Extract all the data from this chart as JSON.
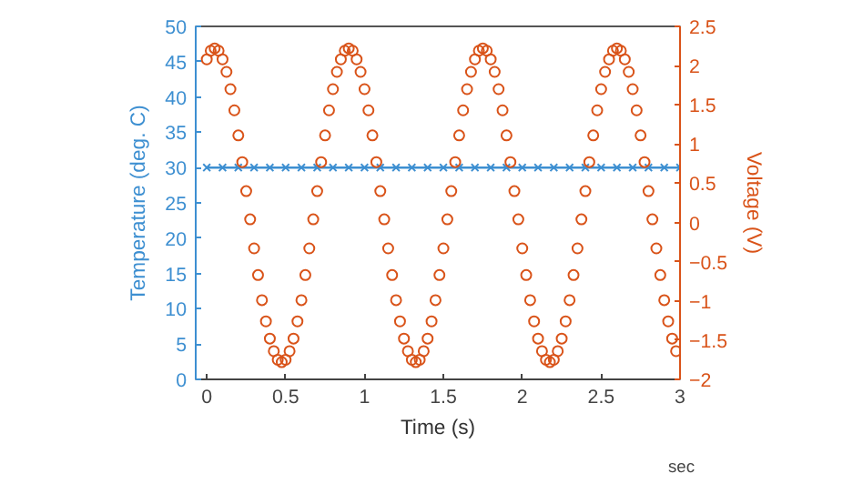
{
  "chart_data": {
    "type": "line",
    "xlabel": "Time (s)",
    "ylabel": "Temperature (deg. C)",
    "y2label": "Voltage (V)",
    "xlim": [
      -0.07,
      3
    ],
    "xticks": [
      0,
      0.5,
      1,
      1.5,
      2,
      2.5,
      3
    ],
    "ylim": [
      0,
      50
    ],
    "yticks": [
      0,
      5,
      10,
      15,
      20,
      25,
      30,
      35,
      40,
      45,
      50
    ],
    "y2lim": [
      -2,
      2.5
    ],
    "y2ticks": [
      -2,
      -1.5,
      -1,
      -0.5,
      0,
      0.5,
      1,
      1.5,
      2,
      2.5
    ],
    "grid": false,
    "annotations": [
      "sec"
    ],
    "series": [
      {
        "marker": "cross",
        "color": "#3d8fd1",
        "x": [
          0,
          0.1,
          0.2,
          0.3,
          0.4,
          0.5,
          0.6,
          0.7,
          0.8,
          0.9,
          1.0,
          1.1,
          1.2,
          1.3,
          1.4,
          1.5,
          1.6,
          1.7,
          1.8,
          1.9,
          2.0,
          2.1,
          2.2,
          2.3,
          2.4,
          2.5,
          2.6,
          2.7,
          2.8,
          2.9,
          3.0
        ],
        "values": [
          30,
          30,
          30,
          30,
          30,
          30,
          30,
          30,
          30,
          30,
          30,
          30,
          30,
          30,
          30,
          30,
          30,
          30,
          30,
          30,
          30,
          30,
          30,
          30,
          30,
          30,
          30,
          30,
          30,
          30,
          30
        ]
      },
      {
        "type": "scatter",
        "marker": "circle",
        "axis": "y2",
        "color": "#d95319",
        "x": [
          0,
          0.025,
          0.05,
          0.075,
          0.1,
          0.125,
          0.15,
          0.175,
          0.2,
          0.225,
          0.25,
          0.275,
          0.3,
          0.325,
          0.35,
          0.375,
          0.4,
          0.425,
          0.45,
          0.475,
          0.5,
          0.525,
          0.55,
          0.575,
          0.6,
          0.625,
          0.65,
          0.675,
          0.7,
          0.725,
          0.75,
          0.775,
          0.8,
          0.825,
          0.85,
          0.875,
          0.9,
          0.925,
          0.95,
          0.975,
          1.0,
          1.025,
          1.05,
          1.075,
          1.1,
          1.125,
          1.15,
          1.175,
          1.2,
          1.225,
          1.25,
          1.275,
          1.3,
          1.325,
          1.35,
          1.375,
          1.4,
          1.425,
          1.45,
          1.475,
          1.5,
          1.525,
          1.55,
          1.575,
          1.6,
          1.625,
          1.65,
          1.675,
          1.7,
          1.725,
          1.75,
          1.775,
          1.8,
          1.825,
          1.85,
          1.875,
          1.9,
          1.925,
          1.95,
          1.975,
          2.0,
          2.025,
          2.05,
          2.075,
          2.1,
          2.125,
          2.15,
          2.175,
          2.2,
          2.225,
          2.25,
          2.275,
          2.3,
          2.325,
          2.35,
          2.375,
          2.4,
          2.425,
          2.45,
          2.475,
          2.5,
          2.525,
          2.55,
          2.575,
          2.6,
          2.625,
          2.65,
          2.675,
          2.7,
          2.725,
          2.75,
          2.775,
          2.8,
          2.825,
          2.85,
          2.875,
          2.9,
          2.925,
          2.95,
          2.975
        ],
        "values": [
          2.08,
          2.19,
          2.22,
          2.19,
          2.08,
          1.92,
          1.7,
          1.43,
          1.11,
          0.77,
          0.4,
          0.04,
          -0.33,
          -0.67,
          -0.99,
          -1.26,
          -1.48,
          -1.64,
          -1.75,
          -1.78,
          -1.75,
          -1.64,
          -1.48,
          -1.26,
          -0.99,
          -0.67,
          -0.33,
          0.04,
          0.4,
          0.77,
          1.11,
          1.43,
          1.7,
          1.92,
          2.08,
          2.19,
          2.22,
          2.19,
          2.08,
          1.92,
          1.7,
          1.43,
          1.11,
          0.77,
          0.4,
          0.04,
          -0.33,
          -0.67,
          -0.99,
          -1.26,
          -1.48,
          -1.64,
          -1.75,
          -1.78,
          -1.75,
          -1.64,
          -1.48,
          -1.26,
          -0.99,
          -0.67,
          -0.33,
          0.04,
          0.4,
          0.77,
          1.11,
          1.43,
          1.7,
          1.92,
          2.08,
          2.19,
          2.22,
          2.19,
          2.08,
          1.92,
          1.7,
          1.43,
          1.11,
          0.77,
          0.4,
          0.04,
          -0.33,
          -0.67,
          -0.99,
          -1.26,
          -1.48,
          -1.64,
          -1.75,
          -1.78,
          -1.75,
          -1.64,
          -1.48,
          -1.26,
          -0.99,
          -0.67,
          -0.33,
          0.04,
          0.4,
          0.77,
          1.11,
          1.43,
          1.7,
          1.92,
          2.08,
          2.19,
          2.22,
          2.19,
          2.08,
          1.92,
          1.7,
          1.43,
          1.11,
          0.77,
          0.4,
          0.04,
          -0.33,
          -0.67,
          -0.99,
          -1.26,
          -1.48,
          -1.64
        ]
      }
    ]
  }
}
